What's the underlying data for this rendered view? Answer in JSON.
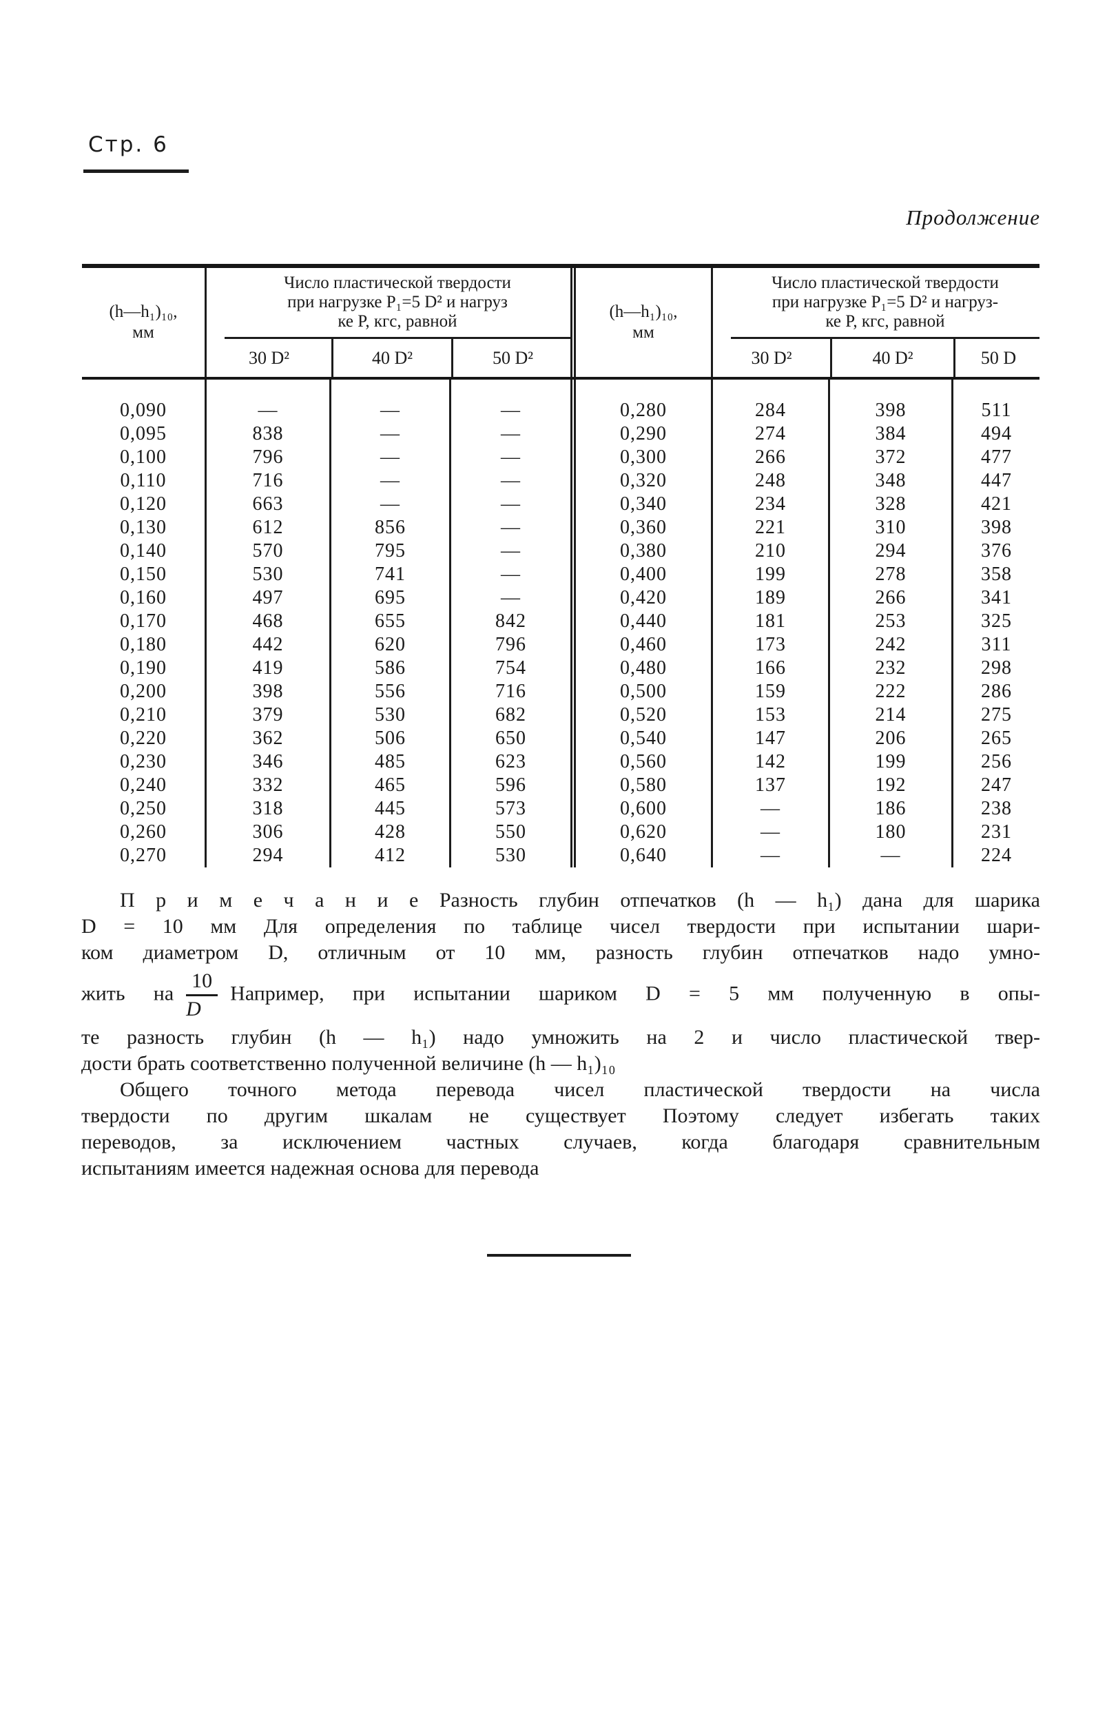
{
  "page": {
    "label": "Стр. 6",
    "continuation": "Продолжение"
  },
  "table": {
    "row_header": {
      "line1": "(h—h₁)₁₀,",
      "line2": "мм"
    },
    "left_group": {
      "title_line1": "Число пластической твердости",
      "title_line2": "при нагрузке P₁=5 D² и нагруз",
      "title_line3": "ке P, кгс, равной",
      "cols": [
        "30 D²",
        "40 D²",
        "50 D²"
      ]
    },
    "right_group": {
      "title_line1": "Число пластической твердости",
      "title_line2": "при нагрузке P₁=5 D² и нагруз-",
      "title_line3": "ке P, кгс, равной",
      "cols": [
        "30 D²",
        "40 D²",
        "50 D"
      ]
    },
    "rows": [
      [
        "0,090",
        "—",
        "—",
        "—",
        "0,280",
        "284",
        "398",
        "511"
      ],
      [
        "0,095",
        "838",
        "—",
        "—",
        "0,290",
        "274",
        "384",
        "494"
      ],
      [
        "0,100",
        "796",
        "—",
        "—",
        "0,300",
        "266",
        "372",
        "477"
      ],
      [
        "0,110",
        "716",
        "—",
        "—",
        "0,320",
        "248",
        "348",
        "447"
      ],
      [
        "0,120",
        "663",
        "—",
        "—",
        "0,340",
        "234",
        "328",
        "421"
      ],
      [
        "0,130",
        "612",
        "856",
        "—",
        "0,360",
        "221",
        "310",
        "398"
      ],
      [
        "0,140",
        "570",
        "795",
        "—",
        "0,380",
        "210",
        "294",
        "376"
      ],
      [
        "0,150",
        "530",
        "741",
        "—",
        "0,400",
        "199",
        "278",
        "358"
      ],
      [
        "0,160",
        "497",
        "695",
        "—",
        "0,420",
        "189",
        "266",
        "341"
      ],
      [
        "0,170",
        "468",
        "655",
        "842",
        "0,440",
        "181",
        "253",
        "325"
      ],
      [
        "0,180",
        "442",
        "620",
        "796",
        "0,460",
        "173",
        "242",
        "311"
      ],
      [
        "0,190",
        "419",
        "586",
        "754",
        "0,480",
        "166",
        "232",
        "298"
      ],
      [
        "0,200",
        "398",
        "556",
        "716",
        "0,500",
        "159",
        "222",
        "286"
      ],
      [
        "0,210",
        "379",
        "530",
        "682",
        "0,520",
        "153",
        "214",
        "275"
      ],
      [
        "0,220",
        "362",
        "506",
        "650",
        "0,540",
        "147",
        "206",
        "265"
      ],
      [
        "0,230",
        "346",
        "485",
        "623",
        "0,560",
        "142",
        "199",
        "256"
      ],
      [
        "0,240",
        "332",
        "465",
        "596",
        "0,580",
        "137",
        "192",
        "247"
      ],
      [
        "0,250",
        "318",
        "445",
        "573",
        "0,600",
        "—",
        "186",
        "238"
      ],
      [
        "0,260",
        "306",
        "428",
        "550",
        "0,620",
        "—",
        "180",
        "231"
      ],
      [
        "0,270",
        "294",
        "412",
        "530",
        "0,640",
        "—",
        "—",
        "224"
      ]
    ]
  },
  "note": {
    "l1": "П р и м е ч а н и е Разность глубин отпечатков (h — h₁) дана для шарика",
    "l2": "D = 10 мм Для определения по таблице чисел твердости при испытании шари-",
    "l3": "ком диаметром D, отличным от 10 мм, разность глубин отпечатков надо умно-",
    "l4a": "жить на",
    "frac_num": "10",
    "frac_den": "D",
    "l4b": "Например, при испытании шариком D = 5 мм полученную в опы-",
    "l5": "те разность глубин (h — h₁) надо умножить на 2 и число пластической твер-",
    "l6": "дости брать соответственно полученной величине (h — h₁)₁₀",
    "l7": "Общего точного метода перевода чисел пластической твердости на числа",
    "l8": "твердости по другим шкалам не существует Поэтому следует избегать таких",
    "l9": "переводов, за исключением частных случаев, когда благодаря сравнительным",
    "l10": "испытаниям имеется надежная основа для перевода"
  }
}
